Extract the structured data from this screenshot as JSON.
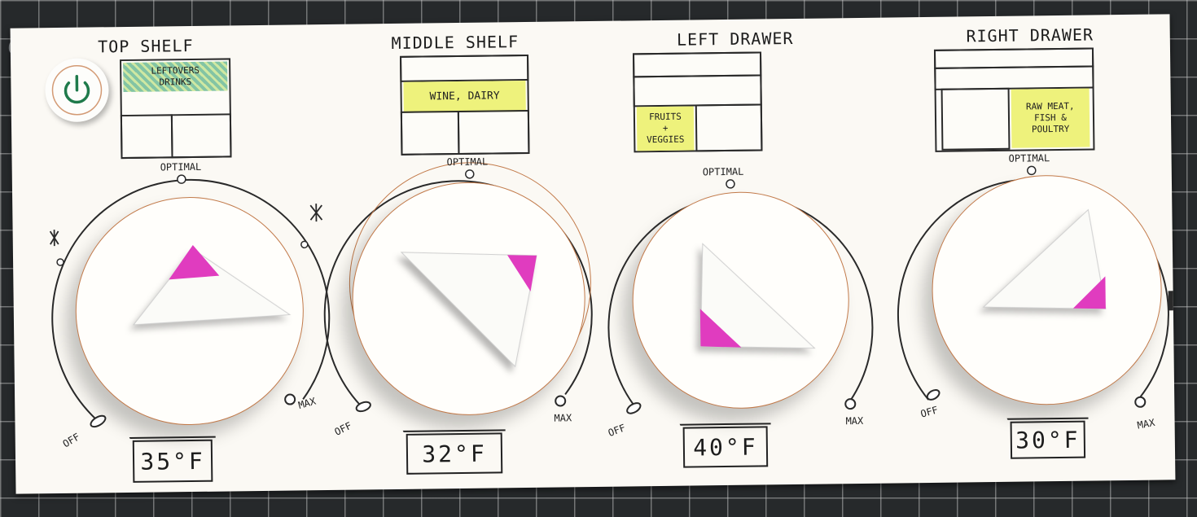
{
  "mat": {
    "number": "60"
  },
  "colors": {
    "accent_magenta": "#e03cbf",
    "highlight": "#eef27c",
    "power_green": "#1f7a4b",
    "dial_ring": "#c27a4a"
  },
  "power": {
    "icon": "power-icon"
  },
  "zones": [
    {
      "label": "TOP SHELF",
      "compartment": "LEFTOVERS\nDRINKS",
      "temperature": "35°F",
      "setting_fraction": 0.5,
      "dial": {
        "off": "OFF",
        "optimal": "OPTIMAL",
        "max": "MAX",
        "snow_icon": "snowflake-icon"
      }
    },
    {
      "label": "MIDDLE SHELF",
      "compartment": "WINE, DAIRY",
      "temperature": "32°F",
      "setting_fraction": 0.62,
      "dial": {
        "off": "OFF",
        "optimal": "OPTIMAL",
        "max": "MAX"
      }
    },
    {
      "label": "LEFT DRAWER",
      "compartment": "FRUITS\n+\nVEGGIES",
      "temperature": "40°F",
      "setting_fraction": 0.25,
      "dial": {
        "off": "OFF",
        "optimal": "OPTIMAL",
        "max": "MAX"
      }
    },
    {
      "label": "RIGHT DRAWER",
      "compartment": "RAW MEAT,\nFISH &\nPOULTRY",
      "temperature": "30°F",
      "setting_fraction": 0.75,
      "dial": {
        "off": "OFF",
        "optimal": "OPTIMAL",
        "max": "MAX"
      }
    }
  ]
}
